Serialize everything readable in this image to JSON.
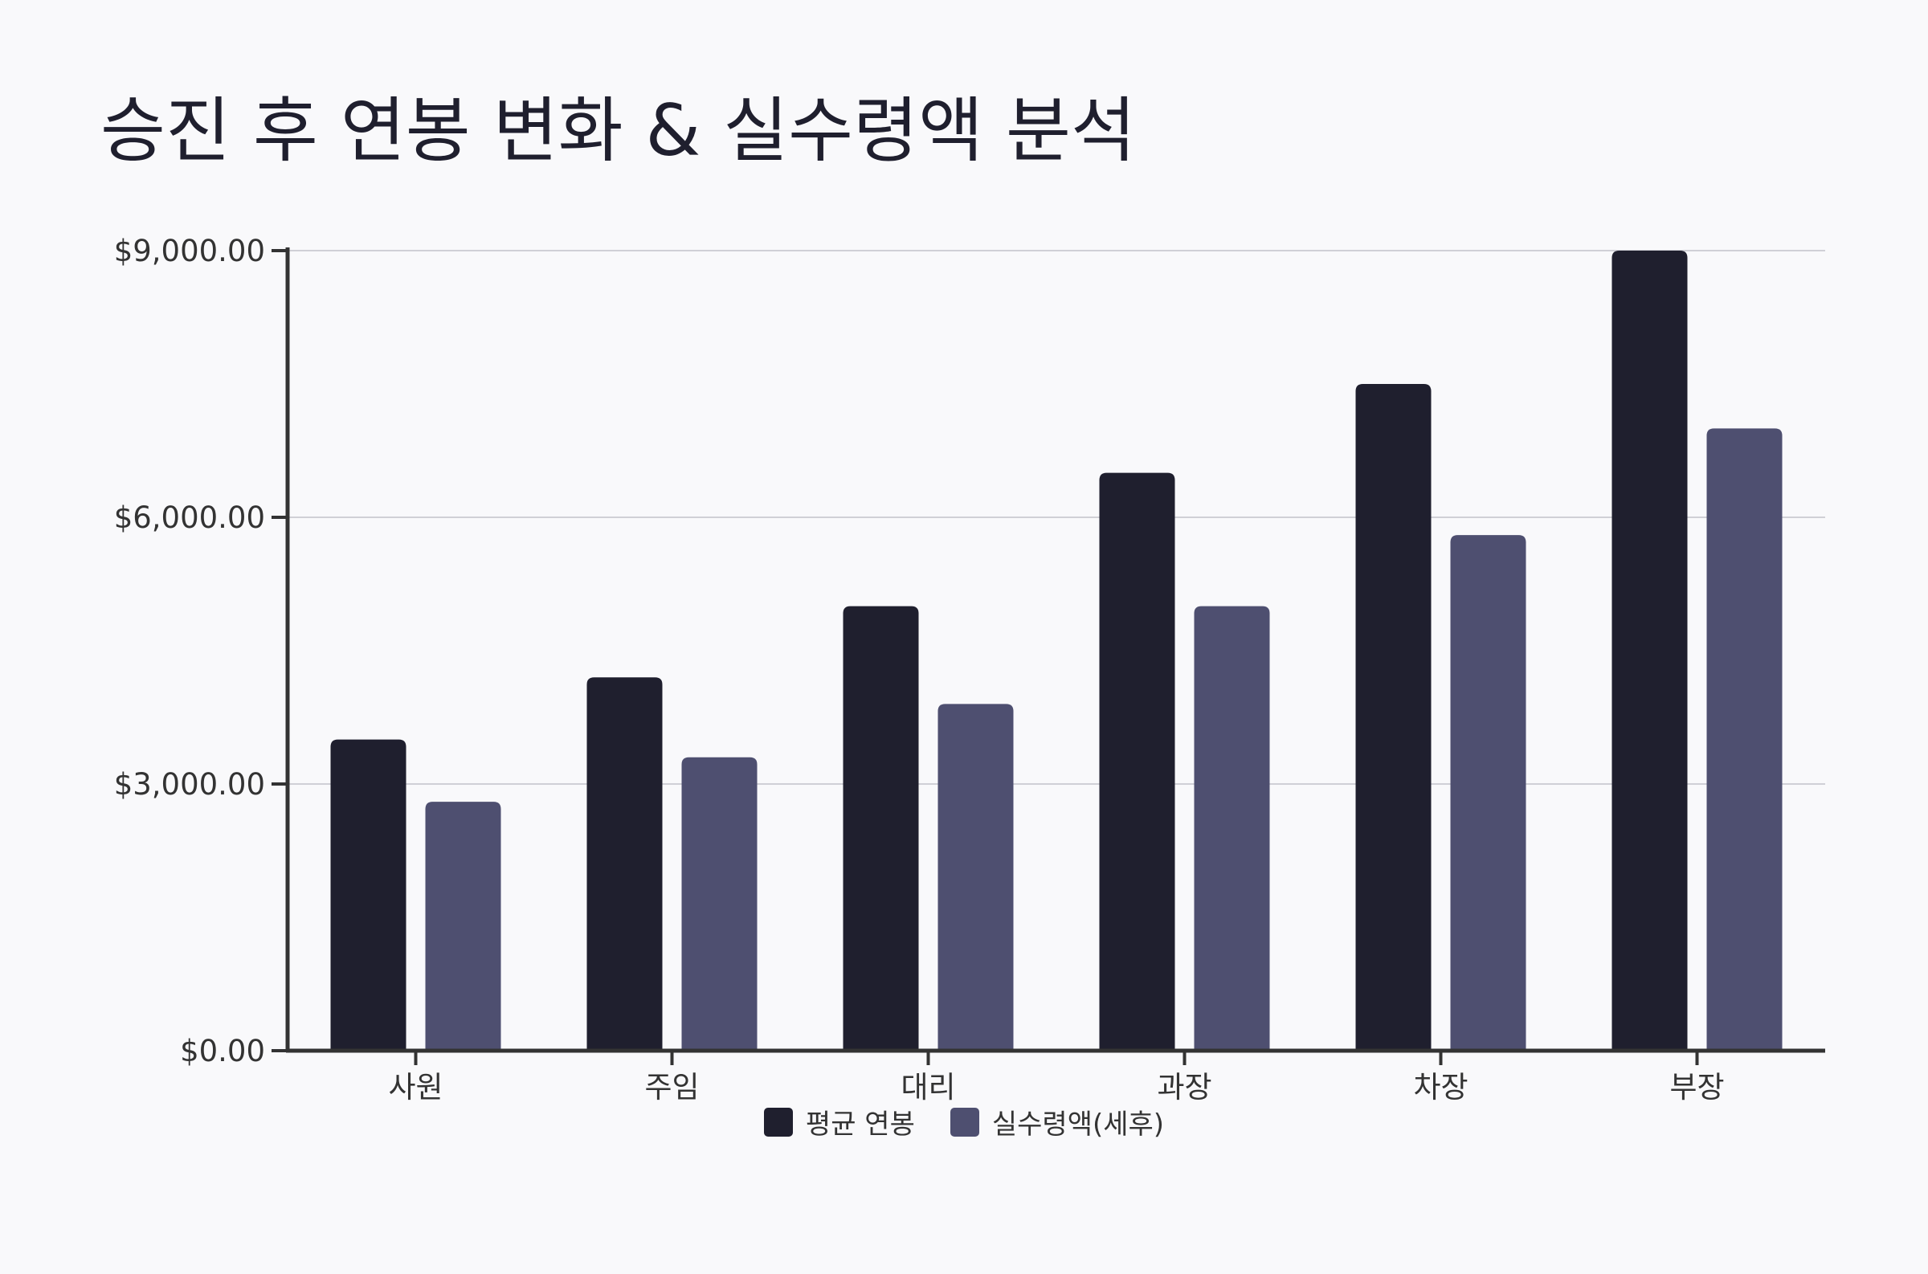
{
  "title": "승진 후 연봉 변화 & 실수령액 분석",
  "colors": {
    "background": "#f9f9fb",
    "avg_salary": "#1f1f2e",
    "net_pay": "#4e4f70",
    "grid": "#d0d0d6",
    "axis": "#333333"
  },
  "legend": {
    "items": [
      {
        "label": "평균 연봉",
        "color": "#1f1f2e"
      },
      {
        "label": "실수령액(세후)",
        "color": "#4e4f70"
      }
    ]
  },
  "chart_data": {
    "type": "bar",
    "title": "승진 후 연봉 변화 & 실수령액 분석",
    "categories": [
      "사원",
      "주임",
      "대리",
      "과장",
      "차장",
      "부장"
    ],
    "series": [
      {
        "name": "평균 연봉",
        "color": "#1f1f2e",
        "values": [
          3500,
          4200,
          5000,
          6500,
          7500,
          9000
        ]
      },
      {
        "name": "실수령액(세후)",
        "color": "#4e4f70",
        "values": [
          2800,
          3300,
          3900,
          5000,
          5800,
          7000
        ]
      }
    ],
    "ylim": [
      0,
      9000
    ],
    "yticks": [
      0,
      3000,
      6000,
      9000
    ],
    "ytick_labels": [
      "$0.00",
      "$3,000.00",
      "$6,000.00",
      "$9,000.00"
    ],
    "grid": true,
    "legend_position": "bottom"
  }
}
